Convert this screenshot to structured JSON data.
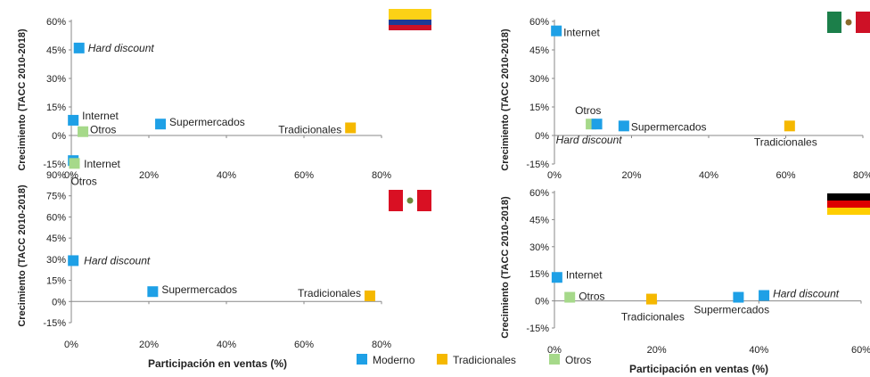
{
  "colors": {
    "Moderno": "#1ea0e6",
    "Tradicionales": "#f5b800",
    "Otros": "#a6d98a"
  },
  "legend": [
    {
      "label": "Moderno",
      "color": "#1ea0e6"
    },
    {
      "label": "Tradicionales",
      "color": "#f5b800"
    },
    {
      "label": "Otros",
      "color": "#a6d98a"
    }
  ],
  "chart_data": [
    {
      "type": "scatter",
      "flag": "colombia",
      "ylabel": "Crecimiento (TACC 2010-2018)",
      "xlabel": "",
      "xlim": [
        0,
        80
      ],
      "ylim": [
        -15,
        60
      ],
      "xticks": [
        "0%",
        "20%",
        "40%",
        "60%",
        "80%"
      ],
      "yticks": [
        "-15%",
        "0%",
        "15%",
        "30%",
        "45%",
        "60%"
      ],
      "points": [
        {
          "label": "Hard discount",
          "x": 2,
          "y": 46,
          "group": "Moderno",
          "italic": true
        },
        {
          "label": "Internet",
          "x": 0.5,
          "y": 8,
          "group": "Moderno",
          "italic": false
        },
        {
          "label": "Otros",
          "x": 3,
          "y": 2,
          "group": "Otros",
          "italic": false
        },
        {
          "label": "Supermercados",
          "x": 23,
          "y": 6,
          "group": "Moderno",
          "italic": false
        },
        {
          "label": "Tradicionales",
          "x": 72,
          "y": 4,
          "group": "Tradicionales",
          "italic": false
        }
      ]
    },
    {
      "type": "scatter",
      "flag": "mexico",
      "ylabel": "Crecimiento (TACC 2010-2018)",
      "xlabel": "",
      "xlim": [
        0,
        80
      ],
      "ylim": [
        -15,
        60
      ],
      "xticks": [
        "0%",
        "20%",
        "40%",
        "60%",
        "80%"
      ],
      "yticks": [
        "-15%",
        "0%",
        "15%",
        "30%",
        "45%",
        "60%"
      ],
      "points": [
        {
          "label": "Internet",
          "x": 0.5,
          "y": 55,
          "group": "Moderno",
          "italic": false
        },
        {
          "label": "Otros",
          "x": 9.5,
          "y": 6,
          "group": "Otros",
          "italic": false
        },
        {
          "label": "Hard discount",
          "x": 11,
          "y": 6,
          "group": "Moderno",
          "italic": true
        },
        {
          "label": "Supermercados",
          "x": 18,
          "y": 5,
          "group": "Moderno",
          "italic": false
        },
        {
          "label": "Tradicionales",
          "x": 61,
          "y": 5,
          "group": "Tradicionales",
          "italic": false
        }
      ]
    },
    {
      "type": "scatter",
      "flag": "peru",
      "ylabel": "Crecimiento (TACC 2010-2018)",
      "xlabel": "Participación en ventas (%)",
      "xlim": [
        0,
        80
      ],
      "ylim": [
        -15,
        105
      ],
      "xticks": [
        "0%",
        "20%",
        "40%",
        "60%",
        "80%"
      ],
      "yticks": [
        "-15%",
        "0%",
        "15%",
        "30%",
        "45%",
        "60%",
        "75%",
        "90%"
      ],
      "points": [
        {
          "label": "Internet",
          "x": 0.5,
          "y": 100,
          "group": "Moderno",
          "italic": false
        },
        {
          "label": "Otros",
          "x": 0.8,
          "y": 98,
          "group": "Otros",
          "italic": false
        },
        {
          "label": "Hard discount",
          "x": 0.5,
          "y": 29,
          "group": "Moderno",
          "italic": true
        },
        {
          "label": "Supermercados",
          "x": 21,
          "y": 7,
          "group": "Moderno",
          "italic": false
        },
        {
          "label": "Tradicionales",
          "x": 77,
          "y": 4,
          "group": "Tradicionales",
          "italic": false
        }
      ]
    },
    {
      "type": "scatter",
      "flag": "germany",
      "ylabel": "Crecimiento (TACC 2010-2018)",
      "xlabel": "Participación en ventas (%)",
      "xlim": [
        0,
        60
      ],
      "ylim": [
        -15,
        60
      ],
      "xticks": [
        "0%",
        "20%",
        "40%",
        "60%"
      ],
      "yticks": [
        "-15%",
        "0%",
        "15%",
        "30%",
        "45%",
        "60%"
      ],
      "points": [
        {
          "label": "Internet",
          "x": 0.5,
          "y": 13,
          "group": "Moderno",
          "italic": false
        },
        {
          "label": "Otros",
          "x": 3,
          "y": 2,
          "group": "Otros",
          "italic": false
        },
        {
          "label": "Tradicionales",
          "x": 19,
          "y": 1,
          "group": "Tradicionales",
          "italic": false
        },
        {
          "label": "Supermercados",
          "x": 36,
          "y": 2,
          "group": "Moderno",
          "italic": false
        },
        {
          "label": "Hard discount",
          "x": 41,
          "y": 3,
          "group": "Moderno",
          "italic": true
        }
      ]
    }
  ]
}
